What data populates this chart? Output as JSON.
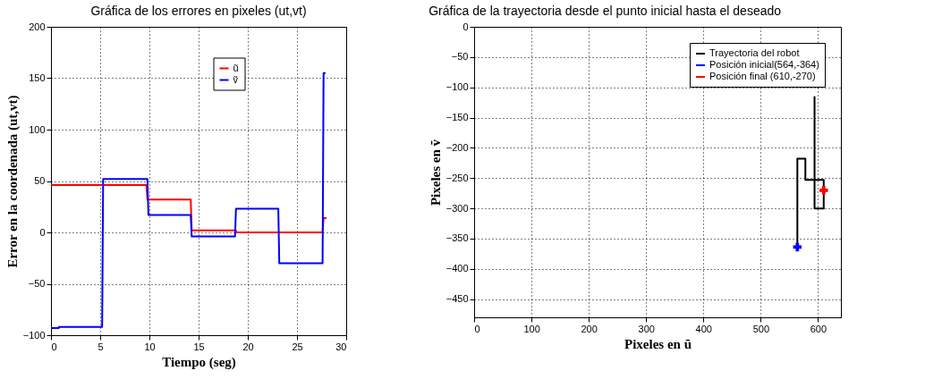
{
  "chart_data": [
    {
      "type": "line",
      "title": "Gráfica de los errores en pixeles (ut,vt)",
      "xlabel": "Tiempo (seg)",
      "ylabel": "Error en la coordenada (ut,vt)",
      "xlim": [
        0,
        30
      ],
      "xticks": [
        0,
        5,
        10,
        15,
        20,
        25,
        30
      ],
      "ylim": [
        -100,
        200
      ],
      "yticks": [
        -100,
        -50,
        0,
        50,
        100,
        150,
        200
      ],
      "grid": true,
      "legend": "top right",
      "line_style": "solid",
      "series": [
        {
          "name": "ũ",
          "color": "#ff0000",
          "x": [
            0,
            9.7,
            9.8,
            14.2,
            14.3,
            18.8,
            18.8,
            27.6,
            27.7,
            28
          ],
          "values": [
            46,
            46,
            32,
            32,
            2,
            2,
            0,
            0,
            14,
            14
          ]
        },
        {
          "name": "ṽ",
          "color": "#0000ff",
          "x": [
            0,
            0.8,
            0.8,
            5.2,
            5.3,
            9.8,
            9.9,
            14.2,
            14.3,
            18.7,
            18.8,
            23.1,
            23.2,
            27.6,
            27.7,
            27.9
          ],
          "values": [
            -93,
            -93,
            -92,
            -92,
            52,
            52,
            17,
            17,
            -4,
            -4,
            23,
            23,
            -30,
            -30,
            155,
            155
          ]
        }
      ]
    },
    {
      "type": "line",
      "title": "Gráfica de la trayectoria desde el punto inicial hasta el deseado",
      "xlabel": "Pixeles en ũ",
      "ylabel": "Pixeles en ṽ",
      "xlim": [
        0,
        640
      ],
      "xticks": [
        0,
        100,
        200,
        300,
        400,
        500,
        600
      ],
      "ylim": [
        -480,
        0
      ],
      "yticks": [
        -450,
        -400,
        -350,
        -300,
        -250,
        -200,
        -150,
        -100,
        -50,
        0
      ],
      "grid": true,
      "legend": "top right",
      "series": [
        {
          "name": "Trayectoria del robot",
          "color": "#000000",
          "x": [
            564,
            564,
            578,
            578,
            610,
            610,
            594,
            594
          ],
          "values": [
            -364,
            -218,
            -218,
            -253,
            -253,
            -300,
            -300,
            -115
          ]
        },
        {
          "name": "Posición inicial(564,-364)",
          "color": "#0000ff",
          "type": "scatter",
          "marker": "cross",
          "x": [
            564
          ],
          "values": [
            -364
          ]
        },
        {
          "name": "Posición final (610,-270)",
          "color": "#ff0000",
          "type": "scatter",
          "marker": "cross",
          "x": [
            610
          ],
          "values": [
            -270
          ]
        }
      ]
    }
  ]
}
